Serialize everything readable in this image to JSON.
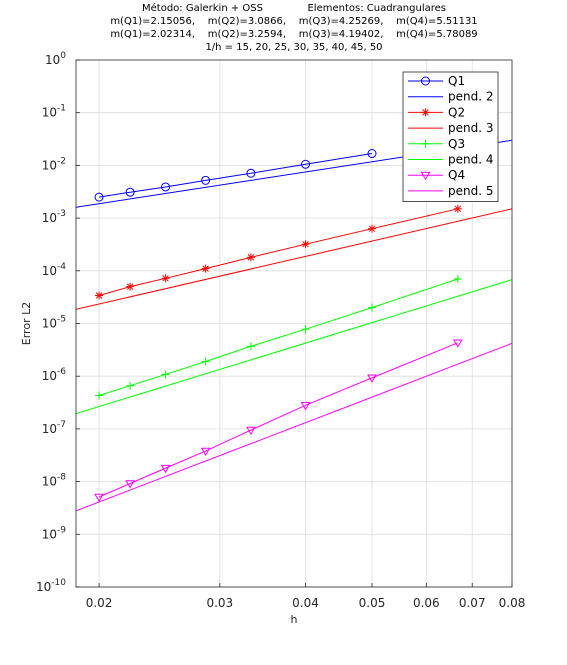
{
  "title_lines": [
    "Método: Galerkin + OSS              Elementos: Cuadrangulares",
    "m(Q1)=2.15056,    m(Q2)=3.0866,    m(Q3)=4.25269,    m(Q4)=5.51131",
    "m(Q1)=2.02314,    m(Q2)=3.2594,    m(Q3)=4.19402,    m(Q4)=5.78089",
    "1/h = 15, 20, 25, 30, 35, 40, 45, 50"
  ],
  "chart_data": {
    "type": "line",
    "xscale": "log",
    "yscale": "log",
    "xlabel": "h",
    "ylabel": "Error L2",
    "xlim": [
      0.01851,
      0.08
    ],
    "ylim": [
      1e-10,
      1
    ],
    "xticks": [
      0.02,
      0.03,
      0.04,
      0.05,
      0.06,
      0.07,
      0.08
    ],
    "xtick_labels": [
      "0.02",
      "0.03",
      "0.04",
      "0.05",
      "0.06",
      "0.07",
      "0.08"
    ],
    "ytick_exponents": [
      0,
      -1,
      -2,
      -3,
      -4,
      -5,
      -6,
      -7,
      -8,
      -9,
      -10
    ],
    "ytick_base": "10",
    "grid": true,
    "legend_position": "top-right",
    "h_values": [
      0.0667,
      0.05,
      0.04,
      0.0333,
      0.0286,
      0.025,
      0.0222,
      0.02
    ],
    "series": [
      {
        "name": "Q1",
        "kind": "data",
        "marker": "circle",
        "color": "#0000ff",
        "x": [
          0.05,
          0.04,
          0.0333,
          0.0286,
          0.025,
          0.0222,
          0.02
        ],
        "y": [
          0.0168,
          0.0105,
          0.0071,
          0.0052,
          0.0039,
          0.0031,
          0.0025
        ]
      },
      {
        "name": "pend. 2",
        "kind": "slope",
        "slope": 2,
        "color": "#0000ff",
        "x_ref": 0.08,
        "y_ref": 0.03
      },
      {
        "name": "Q2",
        "kind": "data",
        "marker": "asterisk",
        "color": "#ff0000",
        "x": [
          0.0667,
          0.05,
          0.04,
          0.0333,
          0.0286,
          0.025,
          0.0222,
          0.02
        ],
        "y": [
          0.0015,
          0.00063,
          0.00032,
          0.00018,
          0.00011,
          7.2e-05,
          5e-05,
          3.4e-05
        ]
      },
      {
        "name": "pend. 3",
        "kind": "slope",
        "slope": 3,
        "color": "#ff0000",
        "x_ref": 0.08,
        "y_ref": 0.0015
      },
      {
        "name": "Q3",
        "kind": "data",
        "marker": "plus",
        "color": "#00ff00",
        "x": [
          0.0667,
          0.05,
          0.04,
          0.0333,
          0.0286,
          0.025,
          0.0222,
          0.02
        ],
        "y": [
          7e-05,
          2e-05,
          7.8e-06,
          3.7e-06,
          1.9e-06,
          1.08e-06,
          6.6e-07,
          4.3e-07
        ]
      },
      {
        "name": "pend. 4",
        "kind": "slope",
        "slope": 4,
        "color": "#00ff00",
        "x_ref": 0.08,
        "y_ref": 6.8e-05
      },
      {
        "name": "Q4",
        "kind": "data",
        "marker": "triangle-down",
        "color": "#ff00ff",
        "x": [
          0.0667,
          0.05,
          0.04,
          0.0333,
          0.0286,
          0.025,
          0.0222,
          0.02
        ],
        "y": [
          4.3e-06,
          9.3e-07,
          2.8e-07,
          9.5e-08,
          3.8e-08,
          1.8e-08,
          9.2e-09,
          5.1e-09
        ]
      },
      {
        "name": "pend. 5",
        "kind": "slope",
        "slope": 5,
        "color": "#ff00ff",
        "x_ref": 0.08,
        "y_ref": 4.2e-06
      }
    ]
  }
}
